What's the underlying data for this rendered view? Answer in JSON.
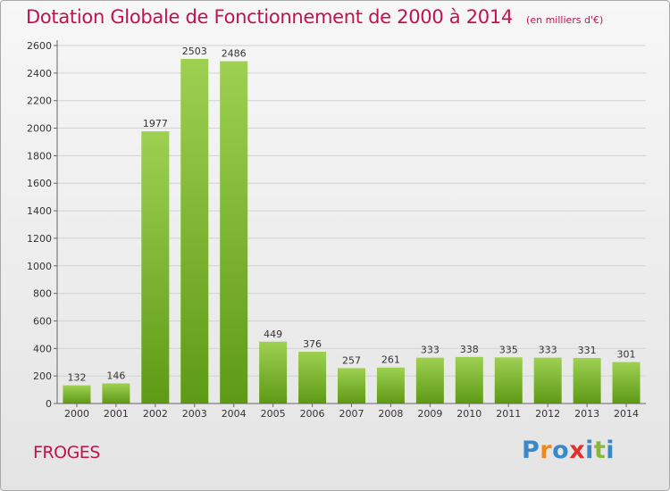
{
  "title": "Dotation Globale de Fonctionnement de 2000 à 2014",
  "subtitle": "(en milliers d'€)",
  "commune": "FROGES",
  "logo": [
    "P",
    "r",
    "o",
    "x",
    "i",
    "t",
    "i"
  ],
  "logo_colors": [
    "#3a88c8",
    "#f18a1c",
    "#3a88c8",
    "#e2312d",
    "#3a88c8",
    "#8ab83a",
    "#3a88c8"
  ],
  "colors": {
    "title": "#c0134e",
    "bar_light": "#9ed052",
    "bar_dark": "#5e9a16",
    "grid": "#d2d2d2"
  },
  "chart_data": {
    "type": "bar",
    "categories": [
      "2000",
      "2001",
      "2002",
      "2003",
      "2004",
      "2005",
      "2006",
      "2007",
      "2008",
      "2009",
      "2010",
      "2011",
      "2012",
      "2013",
      "2014"
    ],
    "values": [
      132,
      146,
      1977,
      2503,
      2486,
      449,
      376,
      257,
      261,
      333,
      338,
      335,
      333,
      331,
      301
    ],
    "yticks": [
      0,
      200,
      400,
      600,
      800,
      1000,
      1200,
      1400,
      1600,
      1800,
      2000,
      2200,
      2400,
      2600
    ],
    "ylim": [
      0,
      2600
    ],
    "grid": true,
    "legend": "none"
  }
}
